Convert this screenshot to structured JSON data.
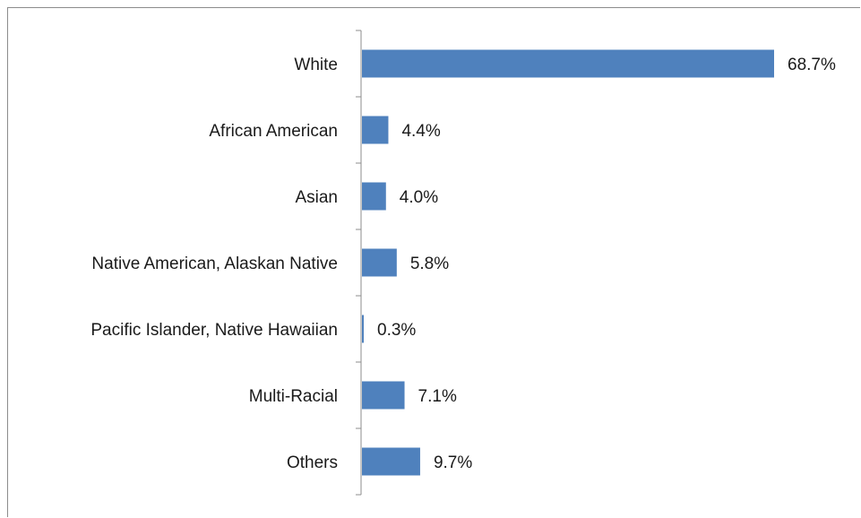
{
  "chart_data": {
    "type": "bar",
    "orientation": "horizontal",
    "categories": [
      "White",
      "African American",
      "Asian",
      "Native American, Alaskan Native",
      "Pacific Islander, Native Hawaiian",
      "Multi-Racial",
      "Others"
    ],
    "values": [
      68.7,
      4.4,
      4.0,
      5.8,
      0.3,
      7.1,
      9.7
    ],
    "data_labels": [
      "68.7%",
      "4.4%",
      "4.0%",
      "5.8%",
      "0.3%",
      "7.1%",
      "9.7%"
    ],
    "xlim": [
      0,
      68.7
    ],
    "grid": false,
    "legend": "none",
    "bar_color": "#4f81bd"
  }
}
